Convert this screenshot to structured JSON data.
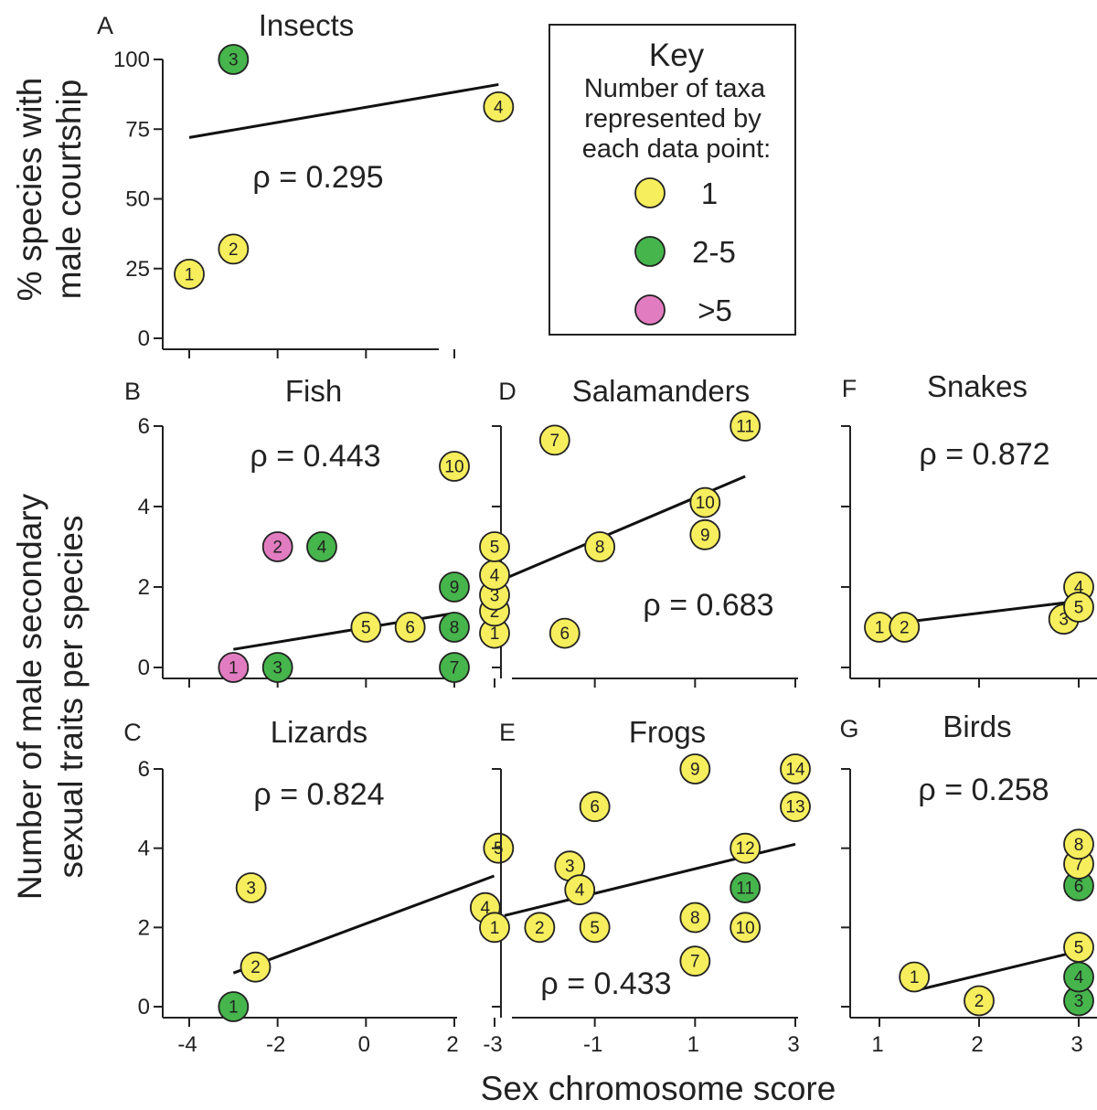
{
  "ylabel_top": [
    "% species with",
    "male courtship"
  ],
  "ylabel_bottom": [
    "Number of male secondary",
    "sexual traits per species"
  ],
  "xlabel": "Sex chromosome score",
  "key": {
    "title": "Key",
    "subtitle": [
      "Number of taxa",
      "represented by",
      "each data point:"
    ],
    "entries": [
      {
        "label": "1",
        "color": "#f6ee5c"
      },
      {
        "label": "2-5",
        "color": "#45b54c"
      },
      {
        "label": ">5",
        "color": "#e27cc1"
      }
    ]
  },
  "colors": {
    "1": "#f6ee5c",
    "2-5": "#45b54c",
    ">5": "#e27cc1"
  },
  "chart_data": [
    {
      "letter": "A",
      "title": "Insects",
      "type": "scatter",
      "rho": "ρ = 0.295",
      "xlim": [
        -4.6,
        3.2
      ],
      "ylim": [
        0,
        100
      ],
      "xticks": [
        -4,
        -2,
        0,
        2
      ],
      "xticklabels": [],
      "yticks": [
        0,
        25,
        50,
        75,
        100
      ],
      "yticklabels": [
        "0",
        "25",
        "50",
        "75",
        "100"
      ],
      "fit": [
        [
          -4,
          72
        ],
        [
          3,
          91
        ]
      ],
      "points": [
        {
          "label": "1",
          "x": -4,
          "y": 23,
          "group": "1"
        },
        {
          "label": "2",
          "x": -3,
          "y": 32,
          "group": "1"
        },
        {
          "label": "3",
          "x": -3,
          "y": 100,
          "group": "2-5"
        },
        {
          "label": "4",
          "x": 3,
          "y": 83,
          "group": "1"
        }
      ]
    },
    {
      "letter": "B",
      "title": "Fish",
      "type": "scatter",
      "rho": "ρ = 0.443",
      "xlim": [
        -4.6,
        3.2
      ],
      "ylim": [
        0,
        6
      ],
      "xticks": [
        -4,
        -2,
        0,
        2
      ],
      "xticklabels": [],
      "yticks": [
        0,
        2,
        4,
        6
      ],
      "yticklabels": [
        "0",
        "2",
        "4",
        "6"
      ],
      "fit": [
        [
          -3,
          0.45
        ],
        [
          2,
          1.35
        ]
      ],
      "points": [
        {
          "label": "1",
          "x": -3,
          "y": 0,
          "group": ">5"
        },
        {
          "label": "2",
          "x": -2,
          "y": 3,
          "group": ">5"
        },
        {
          "label": "3",
          "x": -2,
          "y": 0,
          "group": "2-5"
        },
        {
          "label": "4",
          "x": -1,
          "y": 3,
          "group": "2-5"
        },
        {
          "label": "5",
          "x": 0,
          "y": 1,
          "group": "1"
        },
        {
          "label": "6",
          "x": 1,
          "y": 1,
          "group": "1"
        },
        {
          "label": "7",
          "x": 2,
          "y": 0,
          "group": "2-5"
        },
        {
          "label": "8",
          "x": 2,
          "y": 1,
          "group": "2-5"
        },
        {
          "label": "9",
          "x": 2,
          "y": 2,
          "group": "2-5"
        },
        {
          "label": "10",
          "x": 2,
          "y": 5,
          "group": "1"
        }
      ]
    },
    {
      "letter": "C",
      "title": "Lizards",
      "type": "scatter",
      "rho": "ρ = 0.824",
      "xlim": [
        -4.6,
        3.2
      ],
      "ylim": [
        0,
        6
      ],
      "xticks": [
        -4,
        -2,
        0,
        2
      ],
      "xticklabels": [
        "-4",
        "-2",
        "0",
        "2"
      ],
      "yticks": [
        0,
        2,
        4,
        6
      ],
      "yticklabels": [
        "0",
        "2",
        "4",
        "6"
      ],
      "fit": [
        [
          -3,
          0.85
        ],
        [
          2.9,
          3.3
        ]
      ],
      "points": [
        {
          "label": "1",
          "x": -3,
          "y": 0,
          "group": "2-5"
        },
        {
          "label": "2",
          "x": -2.5,
          "y": 1,
          "group": "1"
        },
        {
          "label": "3",
          "x": -2.6,
          "y": 3,
          "group": "1"
        },
        {
          "label": "4",
          "x": 2.7,
          "y": 2.5,
          "group": "1"
        },
        {
          "label": "5",
          "x": 3,
          "y": 4,
          "group": "1"
        }
      ]
    },
    {
      "letter": "D",
      "title": "Salamanders",
      "type": "scatter",
      "rho": "ρ = 0.683",
      "xlim": [
        -3.4,
        3.1
      ],
      "ylim": [
        0,
        6
      ],
      "xticks": [
        -3,
        -1,
        1,
        3
      ],
      "xticklabels": [],
      "yticks": [
        0,
        2,
        4,
        6
      ],
      "yticklabels": [],
      "fit": [
        [
          -3,
          2.1
        ],
        [
          2,
          4.75
        ]
      ],
      "points": [
        {
          "label": "1",
          "x": -3,
          "y": 0.85,
          "group": "1"
        },
        {
          "label": "2",
          "x": -3,
          "y": 1.4,
          "group": "1"
        },
        {
          "label": "3",
          "x": -3,
          "y": 1.8,
          "group": "1"
        },
        {
          "label": "4",
          "x": -3,
          "y": 2.3,
          "group": "1"
        },
        {
          "label": "5",
          "x": -3,
          "y": 3,
          "group": "1"
        },
        {
          "label": "6",
          "x": -1.6,
          "y": 0.85,
          "group": "1"
        },
        {
          "label": "7",
          "x": -1.8,
          "y": 5.65,
          "group": "1"
        },
        {
          "label": "8",
          "x": -0.9,
          "y": 3,
          "group": "1"
        },
        {
          "label": "9",
          "x": 1.2,
          "y": 3.3,
          "group": "1"
        },
        {
          "label": "10",
          "x": 1.2,
          "y": 4.1,
          "group": "1"
        },
        {
          "label": "11",
          "x": 2,
          "y": 6,
          "group": "1"
        }
      ]
    },
    {
      "letter": "E",
      "title": "Frogs",
      "type": "scatter",
      "rho": "ρ = 0.433",
      "xlim": [
        -3.4,
        3.1
      ],
      "ylim": [
        0,
        6
      ],
      "xticks": [
        -3,
        -1,
        1,
        3
      ],
      "xticklabels": [
        "-3",
        "-1",
        "1",
        "3"
      ],
      "yticks": [
        0,
        2,
        4,
        6
      ],
      "yticklabels": [],
      "fit": [
        [
          -2.8,
          2.3
        ],
        [
          3,
          4.1
        ]
      ],
      "points": [
        {
          "label": "1",
          "x": -3,
          "y": 2,
          "group": "1"
        },
        {
          "label": "2",
          "x": -2.1,
          "y": 2,
          "group": "1"
        },
        {
          "label": "3",
          "x": -1.5,
          "y": 3.55,
          "group": "1"
        },
        {
          "label": "4",
          "x": -1.3,
          "y": 2.95,
          "group": "1"
        },
        {
          "label": "5",
          "x": -1,
          "y": 2,
          "group": "1"
        },
        {
          "label": "6",
          "x": -1,
          "y": 5.05,
          "group": "1"
        },
        {
          "label": "7",
          "x": 1,
          "y": 1.15,
          "group": "1"
        },
        {
          "label": "8",
          "x": 1,
          "y": 2.25,
          "group": "1"
        },
        {
          "label": "9",
          "x": 1,
          "y": 6,
          "group": "1"
        },
        {
          "label": "10",
          "x": 2,
          "y": 2,
          "group": "1"
        },
        {
          "label": "11",
          "x": 2,
          "y": 3,
          "group": "2-5"
        },
        {
          "label": "12",
          "x": 2,
          "y": 4,
          "group": "1"
        },
        {
          "label": "13",
          "x": 3,
          "y": 5.05,
          "group": "1"
        },
        {
          "label": "14",
          "x": 3,
          "y": 6,
          "group": "1"
        }
      ]
    },
    {
      "letter": "F",
      "title": "Snakes",
      "type": "scatter",
      "rho": "ρ = 0.872",
      "xlim": [
        0.7,
        3.05
      ],
      "ylim": [
        0,
        6
      ],
      "xticks": [
        1,
        2,
        3
      ],
      "xticklabels": [],
      "yticks": [
        0,
        2,
        4,
        6
      ],
      "yticklabels": [],
      "fit": [
        [
          1,
          1.05
        ],
        [
          3,
          1.65
        ]
      ],
      "points": [
        {
          "label": "1",
          "x": 1,
          "y": 1,
          "group": "1"
        },
        {
          "label": "2",
          "x": 1.25,
          "y": 1,
          "group": "1"
        },
        {
          "label": "3",
          "x": 2.85,
          "y": 1.2,
          "group": "1"
        },
        {
          "label": "4",
          "x": 3,
          "y": 2,
          "group": "1"
        },
        {
          "label": "5",
          "x": 3,
          "y": 1.5,
          "group": "1"
        }
      ]
    },
    {
      "letter": "G",
      "title": "Birds",
      "type": "scatter",
      "rho": "ρ = 0.258",
      "xlim": [
        0.7,
        3.05
      ],
      "ylim": [
        0,
        6
      ],
      "xticks": [
        1,
        2,
        3
      ],
      "xticklabels": [
        "1",
        "2",
        "3"
      ],
      "yticks": [
        0,
        2,
        4,
        6
      ],
      "yticklabels": [],
      "fit": [
        [
          1.35,
          0.4
        ],
        [
          3,
          1.4
        ]
      ],
      "points": [
        {
          "label": "1",
          "x": 1.35,
          "y": 0.75,
          "group": "1"
        },
        {
          "label": "2",
          "x": 2,
          "y": 0.15,
          "group": "1"
        },
        {
          "label": "3",
          "x": 3,
          "y": 0.15,
          "group": "2-5"
        },
        {
          "label": "4",
          "x": 3,
          "y": 0.75,
          "group": "2-5"
        },
        {
          "label": "5",
          "x": 3,
          "y": 1.5,
          "group": "1"
        },
        {
          "label": "6",
          "x": 3,
          "y": 3.05,
          "group": "2-5"
        },
        {
          "label": "7",
          "x": 3,
          "y": 3.6,
          "group": "1"
        },
        {
          "label": "8",
          "x": 3,
          "y": 4.1,
          "group": "1"
        }
      ]
    }
  ]
}
